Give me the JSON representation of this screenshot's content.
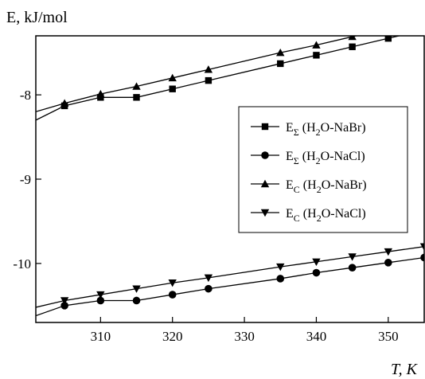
{
  "chart_data": {
    "type": "line",
    "ylabel": "E, kJ/mol",
    "xlabel": "T, K",
    "xlim": [
      301,
      355
    ],
    "ylim": [
      -10.7,
      -7.3
    ],
    "x_ticks": [
      310,
      320,
      330,
      340,
      350
    ],
    "x_tick_labels": [
      "310",
      "320",
      "330",
      "340",
      "350"
    ],
    "y_ticks": [
      -8,
      -9,
      -10
    ],
    "y_tick_labels": [
      "-8",
      "-9",
      "-10"
    ],
    "grid": false,
    "legend_position": "right",
    "series": [
      {
        "name": "E_Σ (H2O-NaBr)",
        "legend_main": "E",
        "legend_sub": "Σ",
        "legend_text": "(H",
        "legend_sub2": "2",
        "legend_rest": "O-NaBr)",
        "marker": "square",
        "x": [
          305,
          310,
          315,
          320,
          325,
          335,
          340,
          345,
          350,
          355
        ],
        "y": [
          -8.13,
          -8.03,
          -8.03,
          -7.93,
          -7.83,
          -7.63,
          -7.53,
          -7.43,
          -7.33,
          -7.23
        ],
        "fit_start": [
          301,
          -8.3
        ]
      },
      {
        "name": "E_Σ (H2O-NaCl)",
        "legend_main": "E",
        "legend_sub": "Σ",
        "legend_text": "(H",
        "legend_sub2": "2",
        "legend_rest": "O-NaCl)",
        "marker": "circle",
        "x": [
          305,
          310,
          315,
          320,
          325,
          335,
          340,
          345,
          350,
          355
        ],
        "y": [
          -10.5,
          -10.44,
          -10.44,
          -10.37,
          -10.3,
          -10.18,
          -10.11,
          -10.05,
          -9.99,
          -9.93
        ],
        "fit_start": [
          301,
          -10.62
        ]
      },
      {
        "name": "E_C (H2O-NaBr)",
        "legend_main": "E",
        "legend_sub": "C",
        "legend_text": "(H",
        "legend_sub2": "2",
        "legend_rest": "O-NaBr)",
        "marker": "triangle-up",
        "x": [
          305,
          310,
          315,
          320,
          325,
          335,
          340,
          345,
          350,
          355
        ],
        "y": [
          -8.1,
          -7.99,
          -7.9,
          -7.8,
          -7.7,
          -7.5,
          -7.41,
          -7.31,
          -7.21,
          -7.1
        ],
        "fit_start": [
          301,
          -8.2
        ]
      },
      {
        "name": "E_C (H2O-NaCl)",
        "legend_main": "E",
        "legend_sub": "C",
        "legend_text": "(H",
        "legend_sub2": "2",
        "legend_rest": "O-NaCl)",
        "marker": "triangle-down",
        "x": [
          305,
          310,
          315,
          320,
          325,
          335,
          340,
          345,
          350,
          355
        ],
        "y": [
          -10.44,
          -10.37,
          -10.3,
          -10.23,
          -10.17,
          -10.04,
          -9.98,
          -9.92,
          -9.86,
          -9.8
        ],
        "fit_start": [
          301,
          -10.52
        ]
      }
    ]
  }
}
